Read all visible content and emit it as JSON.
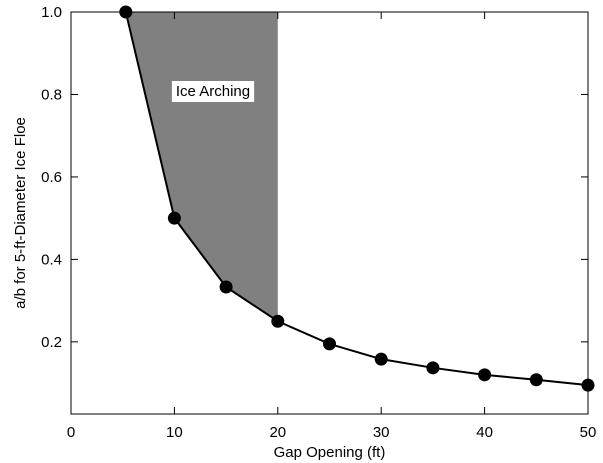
{
  "chart_data": {
    "type": "line",
    "title": "",
    "xlabel": "Gap Opening (ft)",
    "ylabel": "a/b for 5-ft-Diameter Ice Floe",
    "xlim": [
      0,
      50
    ],
    "ylim": [
      0.025,
      1.0
    ],
    "xticks": [
      0,
      10,
      20,
      30,
      40,
      50
    ],
    "xtick_labels": [
      "0",
      "10",
      "20",
      "30",
      "40",
      "50"
    ],
    "yticks": [
      0.2,
      0.4,
      0.6,
      0.8,
      1.0
    ],
    "ytick_labels": [
      "0.2",
      "0.4",
      "0.6",
      "0.8",
      "1.0"
    ],
    "grid": false,
    "series": [
      {
        "x": [
          5.3,
          10,
          15,
          20,
          25,
          30,
          35,
          40,
          45,
          50
        ],
        "y": [
          1.0,
          0.5,
          0.333,
          0.25,
          0.195,
          0.158,
          0.137,
          0.12,
          0.108,
          0.095
        ],
        "marker": "circle",
        "color": "#000000"
      }
    ],
    "shaded_region": {
      "label": "Ice Arching",
      "x_range": [
        5.3,
        20
      ],
      "color": "#808080"
    }
  }
}
